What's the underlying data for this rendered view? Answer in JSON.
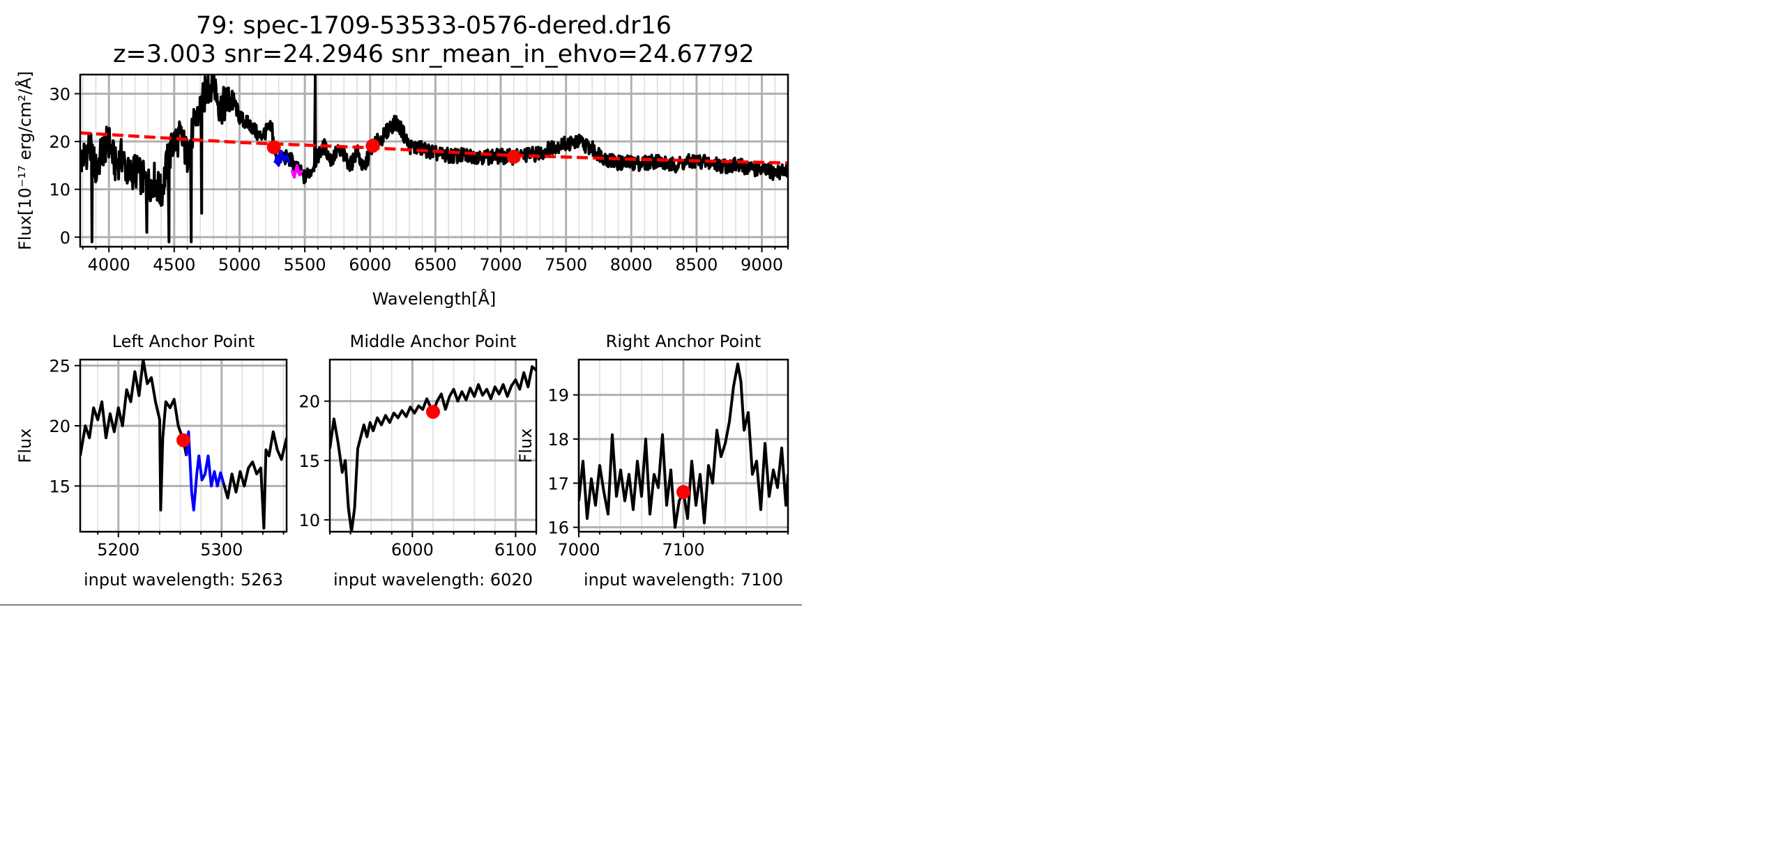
{
  "figure": {
    "title_line1": "79: spec-1709-53533-0576-dered.dr16",
    "title_line2": "z=3.003 snr=24.2946 snr_mean_in_ehvo=24.67792"
  },
  "chart_data": [
    {
      "id": "main",
      "type": "line",
      "title": "",
      "xlabel": "Wavelength[Å]",
      "ylabel": "Flux[10⁻¹⁷ erg/cm²/Å]",
      "xlim": [
        3780,
        9200
      ],
      "ylim": [
        -2,
        34
      ],
      "xticks": [
        4000,
        4500,
        5000,
        5500,
        6000,
        6500,
        7000,
        7500,
        8000,
        8500,
        9000
      ],
      "yticks": [
        0,
        10,
        20,
        30
      ],
      "x_minor_step": 100,
      "grid": true,
      "colors": {
        "spectrum": "#000000",
        "continuum": "#ff0000",
        "anchors": "#ff0000",
        "blue_region": "#0000ff",
        "magenta_region": "#ff00ff"
      },
      "spectrum_keypoints": [
        [
          3790,
          16
        ],
        [
          3850,
          19
        ],
        [
          3900,
          14
        ],
        [
          3950,
          18
        ],
        [
          4000,
          20
        ],
        [
          4050,
          15
        ],
        [
          4100,
          17
        ],
        [
          4150,
          13
        ],
        [
          4200,
          14
        ],
        [
          4300,
          11
        ],
        [
          4350,
          12
        ],
        [
          4400,
          9
        ],
        [
          4450,
          16
        ],
        [
          4500,
          20
        ],
        [
          4550,
          21
        ],
        [
          4600,
          17
        ],
        [
          4650,
          23
        ],
        [
          4700,
          27
        ],
        [
          4750,
          31
        ],
        [
          4800,
          33
        ],
        [
          4850,
          27
        ],
        [
          4900,
          28
        ],
        [
          4950,
          29
        ],
        [
          5000,
          25
        ],
        [
          5050,
          24
        ],
        [
          5100,
          23
        ],
        [
          5150,
          21
        ],
        [
          5200,
          22
        ],
        [
          5250,
          23
        ],
        [
          5263,
          18.8
        ],
        [
          5290,
          16
        ],
        [
          5330,
          17
        ],
        [
          5400,
          16
        ],
        [
          5450,
          14
        ],
        [
          5500,
          12.5
        ],
        [
          5550,
          14
        ],
        [
          5600,
          17
        ],
        [
          5650,
          19
        ],
        [
          5700,
          16
        ],
        [
          5750,
          18
        ],
        [
          5800,
          17
        ],
        [
          5850,
          15
        ],
        [
          5900,
          18
        ],
        [
          5950,
          14
        ],
        [
          6000,
          18
        ],
        [
          6020,
          19.1
        ],
        [
          6100,
          21
        ],
        [
          6150,
          23
        ],
        [
          6200,
          24
        ],
        [
          6250,
          22
        ],
        [
          6300,
          19
        ],
        [
          6400,
          18.5
        ],
        [
          6500,
          17.5
        ],
        [
          6600,
          17
        ],
        [
          6700,
          17
        ],
        [
          6800,
          17
        ],
        [
          6900,
          16.8
        ],
        [
          7000,
          16.9
        ],
        [
          7100,
          16.8
        ],
        [
          7200,
          17.2
        ],
        [
          7300,
          17.5
        ],
        [
          7400,
          19
        ],
        [
          7500,
          19.5
        ],
        [
          7600,
          20
        ],
        [
          7700,
          18.5
        ],
        [
          7800,
          16.5
        ],
        [
          7900,
          15.5
        ],
        [
          8000,
          15.5
        ],
        [
          8100,
          15.5
        ],
        [
          8200,
          16
        ],
        [
          8300,
          15
        ],
        [
          8400,
          15.5
        ],
        [
          8500,
          16
        ],
        [
          8600,
          15.5
        ],
        [
          8700,
          15
        ],
        [
          8800,
          15
        ],
        [
          8900,
          14.5
        ],
        [
          9000,
          14
        ],
        [
          9100,
          13.5
        ],
        [
          9200,
          14
        ]
      ],
      "spectrum_spikes": [
        {
          "x": 4760,
          "y": 34
        },
        {
          "x": 4790,
          "y": 34
        },
        {
          "x": 5580,
          "y": 34
        },
        {
          "x": 4710,
          "y": 5
        },
        {
          "x": 4630,
          "y": -1
        },
        {
          "x": 4460,
          "y": -1
        },
        {
          "x": 3870,
          "y": -1
        },
        {
          "x": 4290,
          "y": 1
        }
      ],
      "blue_region": [
        [
          5270,
          15.5
        ],
        [
          5290,
          17
        ],
        [
          5300,
          15
        ],
        [
          5320,
          18
        ],
        [
          5340,
          16
        ],
        [
          5360,
          17
        ],
        [
          5380,
          15.5
        ]
      ],
      "magenta_region": [
        [
          5400,
          14
        ],
        [
          5420,
          12.5
        ],
        [
          5440,
          15
        ],
        [
          5460,
          13
        ],
        [
          5480,
          14
        ]
      ],
      "continuum": {
        "points": [
          [
            3780,
            21.8
          ],
          [
            5000,
            19.8
          ],
          [
            6000,
            18.7
          ],
          [
            7000,
            17.2
          ],
          [
            8000,
            16.3
          ],
          [
            9200,
            15.5
          ]
        ],
        "style": "dashed"
      },
      "anchor_points": [
        [
          5263,
          18.8
        ],
        [
          6020,
          19.1
        ],
        [
          7100,
          16.8
        ]
      ]
    },
    {
      "id": "left",
      "type": "line",
      "title": "Left Anchor Point",
      "xlabel": "input wavelength: 5263",
      "ylabel": "Flux",
      "xlim": [
        5163,
        5363
      ],
      "ylim": [
        11.2,
        25.5
      ],
      "xticks": [
        5200,
        5300
      ],
      "yticks": [
        15,
        20,
        25
      ],
      "x_minor_step": 20,
      "grid": true,
      "series_black": [
        [
          5163,
          17.5
        ],
        [
          5168,
          20
        ],
        [
          5172,
          19
        ],
        [
          5176,
          21.5
        ],
        [
          5180,
          20.5
        ],
        [
          5184,
          22
        ],
        [
          5188,
          19
        ],
        [
          5192,
          21
        ],
        [
          5196,
          19.5
        ],
        [
          5200,
          21.5
        ],
        [
          5204,
          20
        ],
        [
          5208,
          23
        ],
        [
          5212,
          22
        ],
        [
          5216,
          24.5
        ],
        [
          5220,
          22.5
        ],
        [
          5224,
          25.5
        ],
        [
          5228,
          23.5
        ],
        [
          5232,
          24
        ],
        [
          5236,
          22
        ],
        [
          5240,
          20.5
        ],
        [
          5241,
          13
        ],
        [
          5243,
          19
        ],
        [
          5246,
          22
        ],
        [
          5250,
          21.5
        ],
        [
          5254,
          22.2
        ],
        [
          5258,
          20
        ],
        [
          5263,
          18.8
        ],
        [
          5266,
          17.5
        ]
      ],
      "series_blue": [
        [
          5266,
          17.5
        ],
        [
          5268,
          19.5
        ],
        [
          5271,
          14.5
        ],
        [
          5273,
          13
        ],
        [
          5276,
          16
        ],
        [
          5278,
          17.5
        ],
        [
          5281,
          15.5
        ],
        [
          5284,
          16
        ],
        [
          5287,
          17.5
        ],
        [
          5290,
          15
        ],
        [
          5293,
          16.2
        ],
        [
          5296,
          15
        ],
        [
          5299,
          16.1
        ],
        [
          5302,
          15.2
        ]
      ],
      "series_black_tail": [
        [
          5302,
          15.2
        ],
        [
          5306,
          14
        ],
        [
          5310,
          16
        ],
        [
          5314,
          14.5
        ],
        [
          5318,
          16.2
        ],
        [
          5322,
          15
        ],
        [
          5326,
          16.5
        ],
        [
          5330,
          17
        ],
        [
          5334,
          16
        ],
        [
          5338,
          16.5
        ],
        [
          5341,
          11.5
        ],
        [
          5343,
          18
        ],
        [
          5346,
          17.5
        ],
        [
          5350,
          19.5
        ],
        [
          5354,
          18
        ],
        [
          5358,
          17.2
        ],
        [
          5363,
          19
        ]
      ],
      "anchor_points": [
        [
          5263,
          18.8
        ]
      ]
    },
    {
      "id": "middle",
      "type": "line",
      "title": "Middle Anchor Point",
      "xlabel": "input wavelength: 6020",
      "ylabel": "",
      "xlim": [
        5920,
        6120
      ],
      "ylim": [
        9,
        23.5
      ],
      "xticks": [
        6000,
        6100
      ],
      "yticks": [
        10,
        15,
        20
      ],
      "x_minor_step": 20,
      "grid": true,
      "series_black": [
        [
          5920,
          16
        ],
        [
          5924,
          18.5
        ],
        [
          5928,
          16.5
        ],
        [
          5932,
          14
        ],
        [
          5935,
          15
        ],
        [
          5938,
          11
        ],
        [
          5941,
          9
        ],
        [
          5944,
          11
        ],
        [
          5947,
          16
        ],
        [
          5950,
          17
        ],
        [
          5953,
          18
        ],
        [
          5956,
          17
        ],
        [
          5959,
          18.2
        ],
        [
          5962,
          17.5
        ],
        [
          5966,
          18.6
        ],
        [
          5970,
          18
        ],
        [
          5974,
          18.8
        ],
        [
          5978,
          18.2
        ],
        [
          5982,
          19
        ],
        [
          5986,
          18.6
        ],
        [
          5990,
          19.2
        ],
        [
          5994,
          18.7
        ],
        [
          5998,
          19.5
        ],
        [
          6002,
          19
        ],
        [
          6006,
          19.6
        ],
        [
          6010,
          19.3
        ],
        [
          6014,
          20.2
        ],
        [
          6018,
          19.4
        ],
        [
          6020,
          19.1
        ],
        [
          6024,
          20
        ],
        [
          6028,
          20.6
        ],
        [
          6032,
          19.3
        ],
        [
          6036,
          20.4
        ],
        [
          6040,
          21
        ],
        [
          6044,
          20
        ],
        [
          6048,
          20.8
        ],
        [
          6052,
          20.1
        ],
        [
          6056,
          21.1
        ],
        [
          6060,
          20.4
        ],
        [
          6064,
          21.4
        ],
        [
          6068,
          20.5
        ],
        [
          6072,
          21
        ],
        [
          6076,
          20.2
        ],
        [
          6080,
          21.2
        ],
        [
          6084,
          20.6
        ],
        [
          6088,
          21.4
        ],
        [
          6092,
          20.4
        ],
        [
          6096,
          21.3
        ],
        [
          6100,
          21.8
        ],
        [
          6104,
          21
        ],
        [
          6108,
          22.4
        ],
        [
          6112,
          21.2
        ],
        [
          6116,
          22.9
        ],
        [
          6120,
          22.6
        ]
      ],
      "anchor_points": [
        [
          6020,
          19.1
        ]
      ]
    },
    {
      "id": "right",
      "type": "line",
      "title": "Right Anchor Point",
      "xlabel": "input wavelength: 7100",
      "ylabel": "Flux",
      "xlim": [
        7000,
        7200
      ],
      "ylim": [
        15.9,
        19.8
      ],
      "xticks": [
        7000,
        7100
      ],
      "yticks": [
        16,
        17,
        18,
        19
      ],
      "x_minor_step": 20,
      "grid": true,
      "series_black": [
        [
          7000,
          16.6
        ],
        [
          7004,
          17.5
        ],
        [
          7008,
          16.2
        ],
        [
          7012,
          17.1
        ],
        [
          7016,
          16.5
        ],
        [
          7020,
          17.4
        ],
        [
          7024,
          16.8
        ],
        [
          7028,
          16.3
        ],
        [
          7032,
          18.1
        ],
        [
          7036,
          16.7
        ],
        [
          7040,
          17.3
        ],
        [
          7044,
          16.6
        ],
        [
          7048,
          17.2
        ],
        [
          7052,
          16.4
        ],
        [
          7056,
          17.5
        ],
        [
          7060,
          16.7
        ],
        [
          7064,
          18
        ],
        [
          7068,
          16.3
        ],
        [
          7072,
          17.2
        ],
        [
          7076,
          16.9
        ],
        [
          7080,
          18.1
        ],
        [
          7084,
          16.5
        ],
        [
          7088,
          17.3
        ],
        [
          7092,
          16
        ],
        [
          7096,
          16.6
        ],
        [
          7100,
          16.8
        ],
        [
          7104,
          16.2
        ],
        [
          7108,
          17.5
        ],
        [
          7112,
          16.5
        ],
        [
          7116,
          17.2
        ],
        [
          7120,
          16.1
        ],
        [
          7124,
          17.4
        ],
        [
          7128,
          17
        ],
        [
          7132,
          18.2
        ],
        [
          7136,
          17.6
        ],
        [
          7140,
          17.9
        ],
        [
          7144,
          18.4
        ],
        [
          7148,
          19.2
        ],
        [
          7152,
          19.7
        ],
        [
          7155,
          19.3
        ],
        [
          7158,
          18.2
        ],
        [
          7162,
          18.6
        ],
        [
          7166,
          17.2
        ],
        [
          7170,
          17.5
        ],
        [
          7174,
          16.4
        ],
        [
          7178,
          17.9
        ],
        [
          7182,
          16.7
        ],
        [
          7186,
          17.3
        ],
        [
          7190,
          16.9
        ],
        [
          7194,
          17.8
        ],
        [
          7198,
          16.5
        ],
        [
          7200,
          17.2
        ]
      ],
      "anchor_points": [
        [
          7100,
          16.8
        ]
      ]
    }
  ]
}
